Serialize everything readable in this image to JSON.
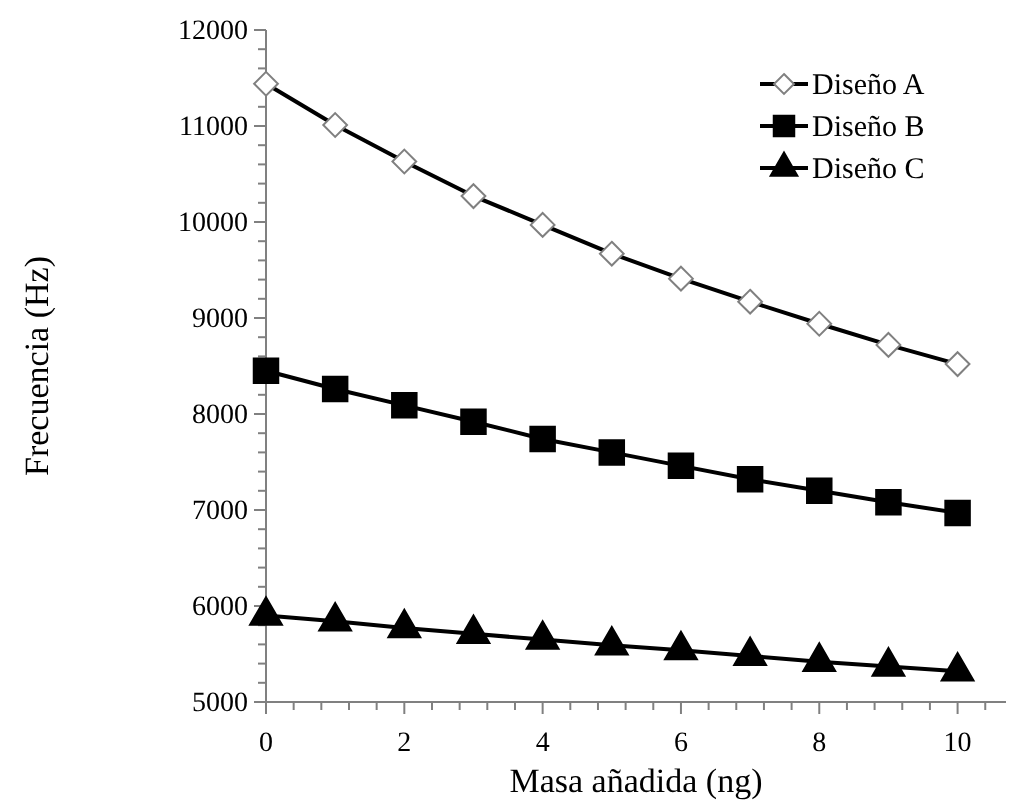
{
  "chart_data": {
    "type": "line",
    "xlabel": "Masa añadida (ng)",
    "ylabel": "Frecuencia (Hz)",
    "x": [
      0,
      1,
      2,
      3,
      4,
      5,
      6,
      7,
      8,
      9,
      10
    ],
    "series": [
      {
        "name": "Diseño A",
        "color": "#000000",
        "marker": "diamond",
        "values": [
          11440,
          11010,
          10630,
          10270,
          9970,
          9670,
          9410,
          9170,
          8940,
          8720,
          8520
        ]
      },
      {
        "name": "Diseño B",
        "color": "#000000",
        "marker": "square",
        "values": [
          8450,
          8260,
          8090,
          7920,
          7740,
          7600,
          7460,
          7320,
          7200,
          7080,
          6970
        ]
      },
      {
        "name": "Diseño C",
        "color": "#000000",
        "marker": "triangle",
        "values": [
          5900,
          5840,
          5770,
          5710,
          5650,
          5590,
          5540,
          5480,
          5420,
          5370,
          5320
        ]
      }
    ],
    "xlim": [
      0,
      10.7
    ],
    "xticks": [
      0,
      {
        "value": 0.4,
        "label": null
      },
      {
        "value": 0.8,
        "label": null
      },
      {
        "value": 1.2,
        "label": null
      },
      {
        "value": 1.6,
        "label": null
      },
      2,
      {
        "value": 2.4,
        "label": null
      },
      {
        "value": 2.8,
        "label": null
      },
      {
        "value": 3.2,
        "label": null
      },
      {
        "value": 3.6,
        "label": null
      },
      4,
      {
        "value": 4.4,
        "label": null
      },
      {
        "value": 4.8,
        "label": null
      },
      {
        "value": 5.2,
        "label": null
      },
      {
        "value": 5.6,
        "label": null
      },
      6,
      {
        "value": 6.4,
        "label": null
      },
      {
        "value": 6.8,
        "label": null
      },
      {
        "value": 7.2,
        "label": null
      },
      {
        "value": 7.6,
        "label": null
      },
      8,
      {
        "value": 8.4,
        "label": null
      },
      {
        "value": 8.8,
        "label": null
      },
      {
        "value": 9.2,
        "label": null
      },
      {
        "value": 9.6,
        "label": null
      },
      10,
      {
        "value": 10.4,
        "label": null
      }
    ],
    "ylim": [
      5000,
      12000
    ],
    "yticks": [
      5000,
      {
        "value": 5200,
        "label": null
      },
      {
        "value": 5400,
        "label": null
      },
      {
        "value": 5600,
        "label": null
      },
      {
        "value": 5800,
        "label": null
      },
      6000,
      {
        "value": 6200,
        "label": null
      },
      {
        "value": 6400,
        "label": null
      },
      {
        "value": 6600,
        "label": null
      },
      {
        "value": 6800,
        "label": null
      },
      7000,
      {
        "value": 7200,
        "label": null
      },
      {
        "value": 7400,
        "label": null
      },
      {
        "value": 7600,
        "label": null
      },
      {
        "value": 7800,
        "label": null
      },
      8000,
      {
        "value": 8200,
        "label": null
      },
      {
        "value": 8400,
        "label": null
      },
      {
        "value": 8600,
        "label": null
      },
      {
        "value": 8800,
        "label": null
      },
      9000,
      {
        "value": 9200,
        "label": null
      },
      {
        "value": 9400,
        "label": null
      },
      {
        "value": 9600,
        "label": null
      },
      {
        "value": 9800,
        "label": null
      },
      10000,
      {
        "value": 10200,
        "label": null
      },
      {
        "value": 10400,
        "label": null
      },
      {
        "value": 10600,
        "label": null
      },
      {
        "value": 10800,
        "label": null
      },
      11000,
      {
        "value": 11200,
        "label": null
      },
      {
        "value": 11400,
        "label": null
      },
      {
        "value": 11600,
        "label": null
      },
      {
        "value": 11800,
        "label": null
      },
      12000
    ],
    "grid": false,
    "legend": "top right",
    "line_style": "solid"
  }
}
